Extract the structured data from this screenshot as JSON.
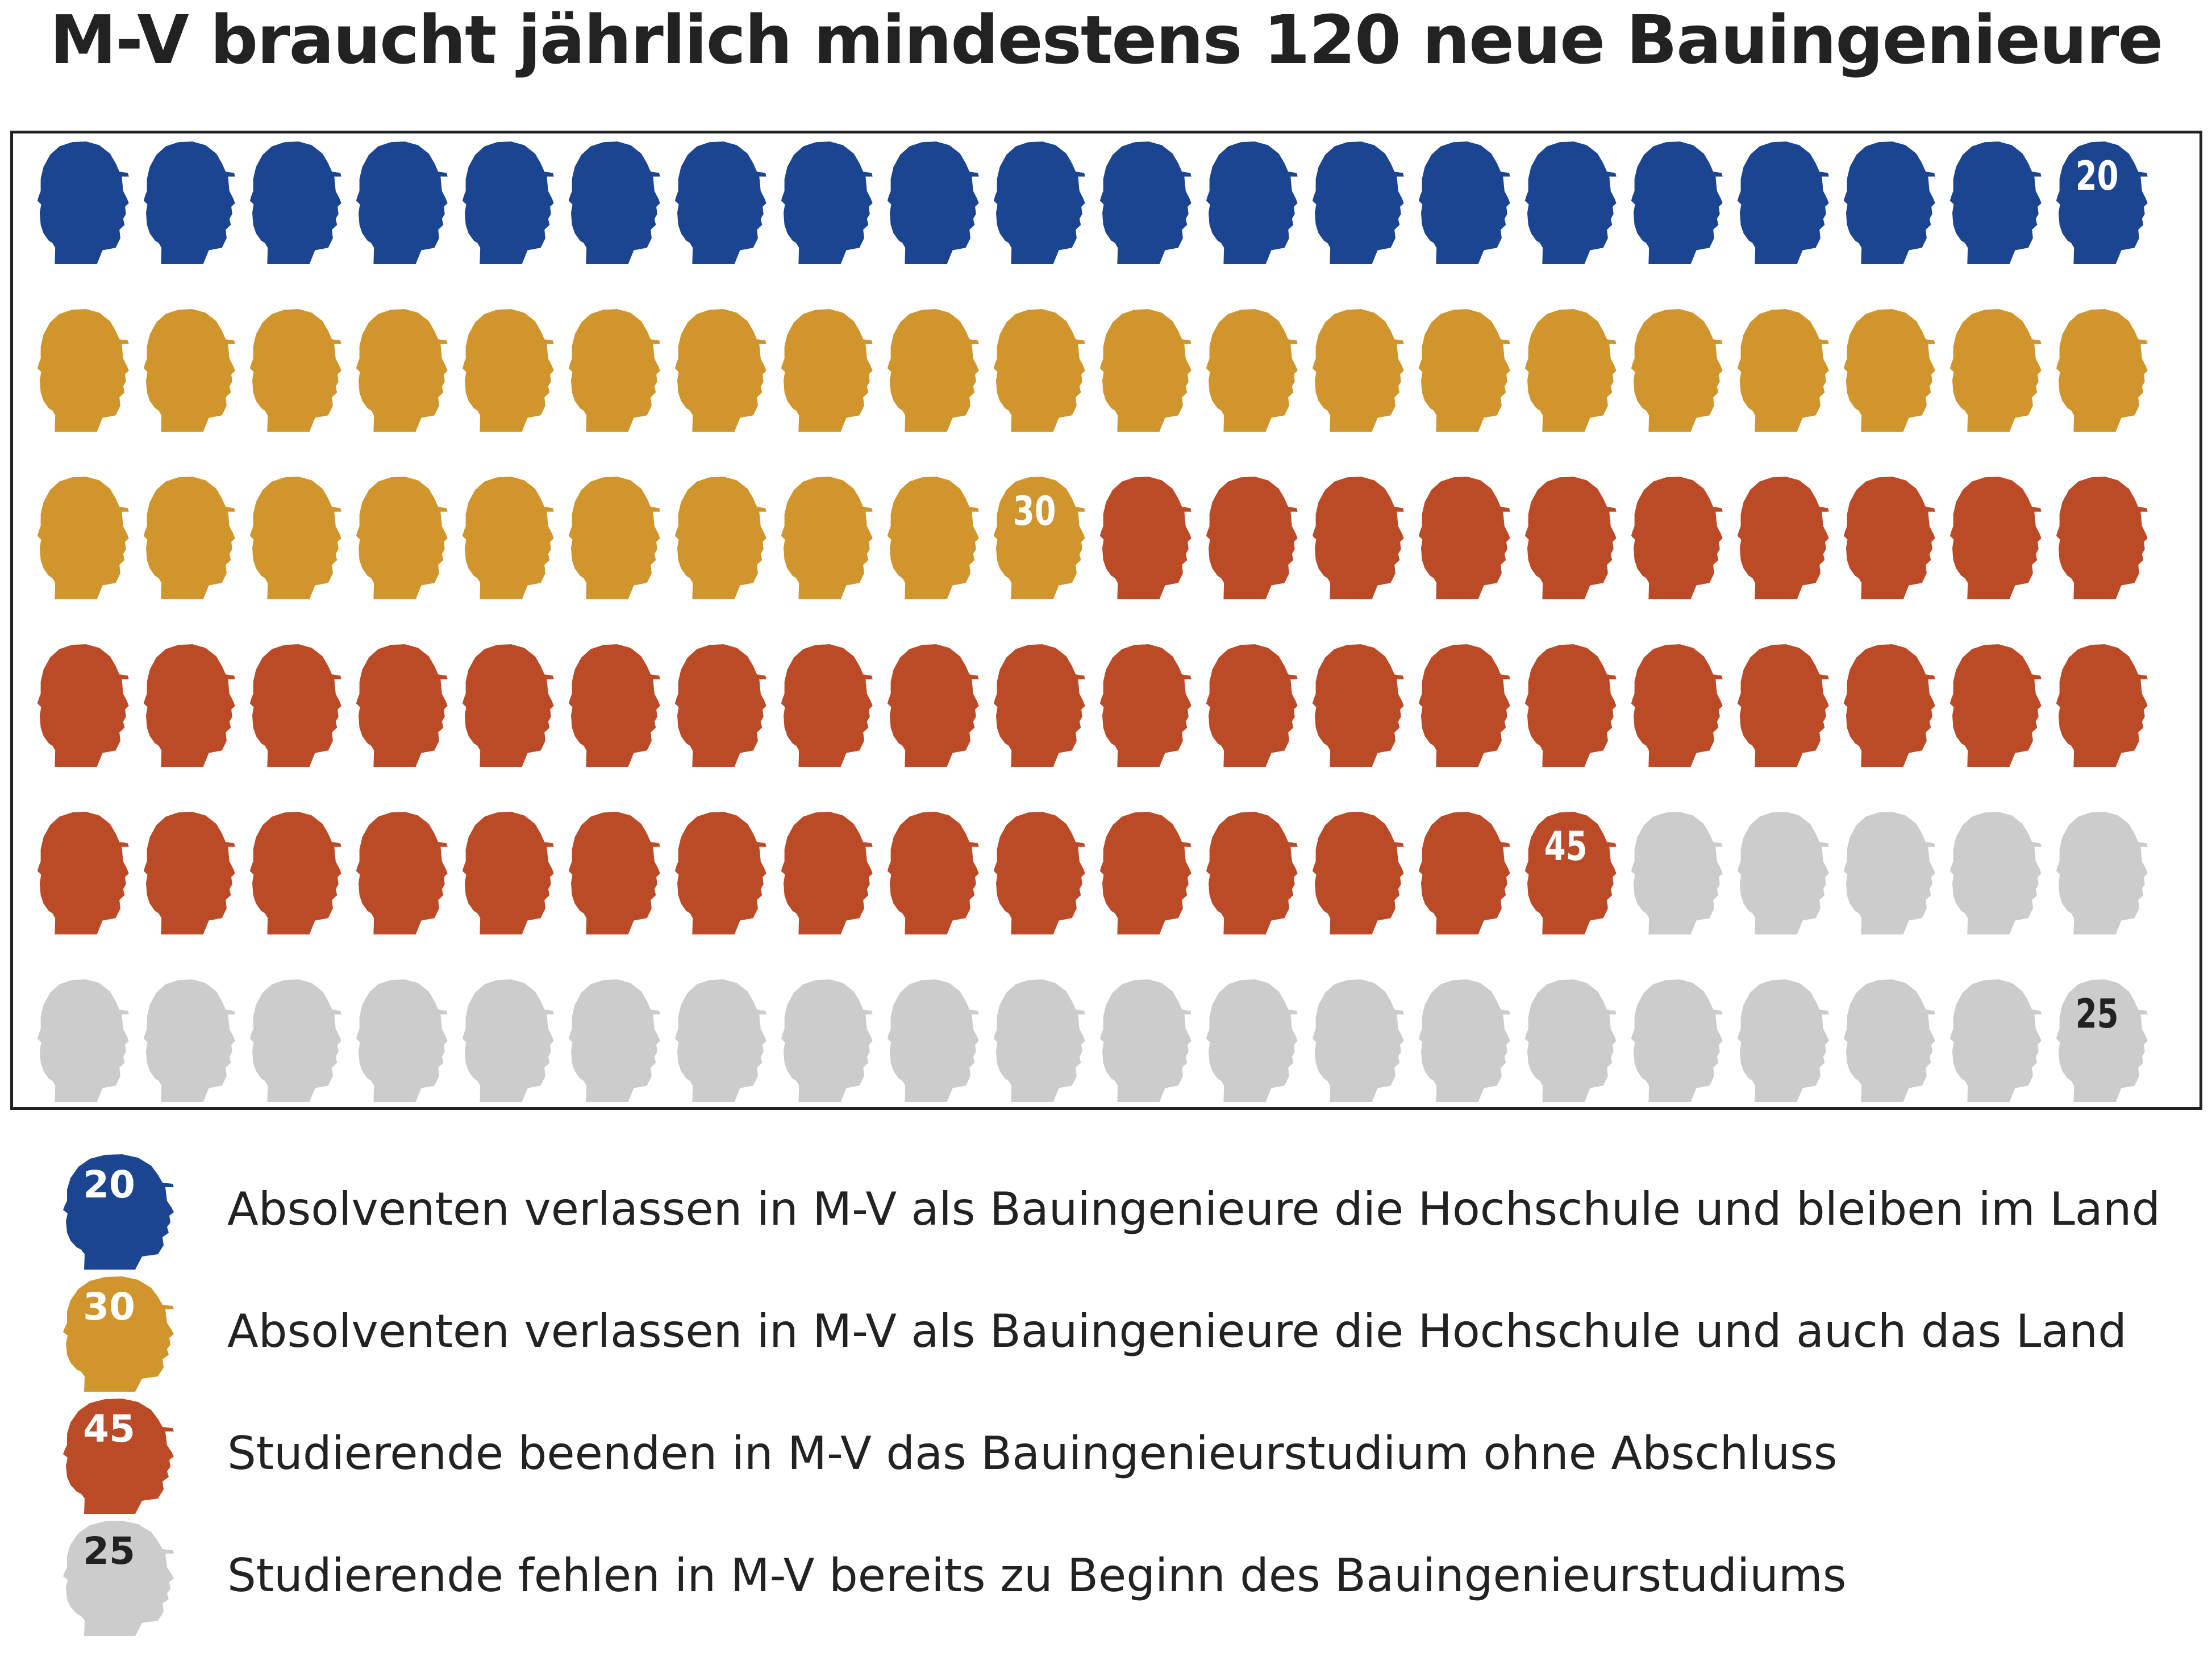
{
  "title": "M-V braucht jährlich mindestens 120 neue Bauingenieure",
  "icon": "head-silhouette-icon",
  "chart_data": {
    "type": "pictograph",
    "total": 120,
    "grid": {
      "rows": 6,
      "cols": 20
    },
    "categories": [
      {
        "name": "Absolventen verlassen in M-V als Bauingenieure die Hochschule und bleiben im Land",
        "value": 20,
        "color": "#1b4591",
        "label_color": "#ffffff"
      },
      {
        "name": "Absolventen verlassen in M-V als Bauingenieure die Hochschule und auch das Land",
        "value": 30,
        "color": "#d0952c",
        "label_color": "#ffffff"
      },
      {
        "name": "Studierende beenden in M-V das Bauingenieurstudium ohne Abschluss",
        "value": 45,
        "color": "#bb4a27",
        "label_color": "#ffffff"
      },
      {
        "name": "Studierende fehlen in M-V bereits zu Beginn des Bauingenieurstudiums",
        "value": 25,
        "color": "#cccccc",
        "label_color": "#222222"
      }
    ]
  },
  "legend": [
    {
      "count": "20",
      "text": "Absolventen verlassen in M-V als Bauingenieure die Hochschule und bleiben im Land"
    },
    {
      "count": "30",
      "text": "Absolventen verlassen in M-V als Bauingenieure die Hochschule und auch das Land"
    },
    {
      "count": "45",
      "text": "Studierende beenden in M-V das Bauingenieurstudium ohne Abschluss"
    },
    {
      "count": "25",
      "text": "Studierende fehlen in M-V bereits zu Beginn des Bauingenieurstudiums"
    }
  ]
}
